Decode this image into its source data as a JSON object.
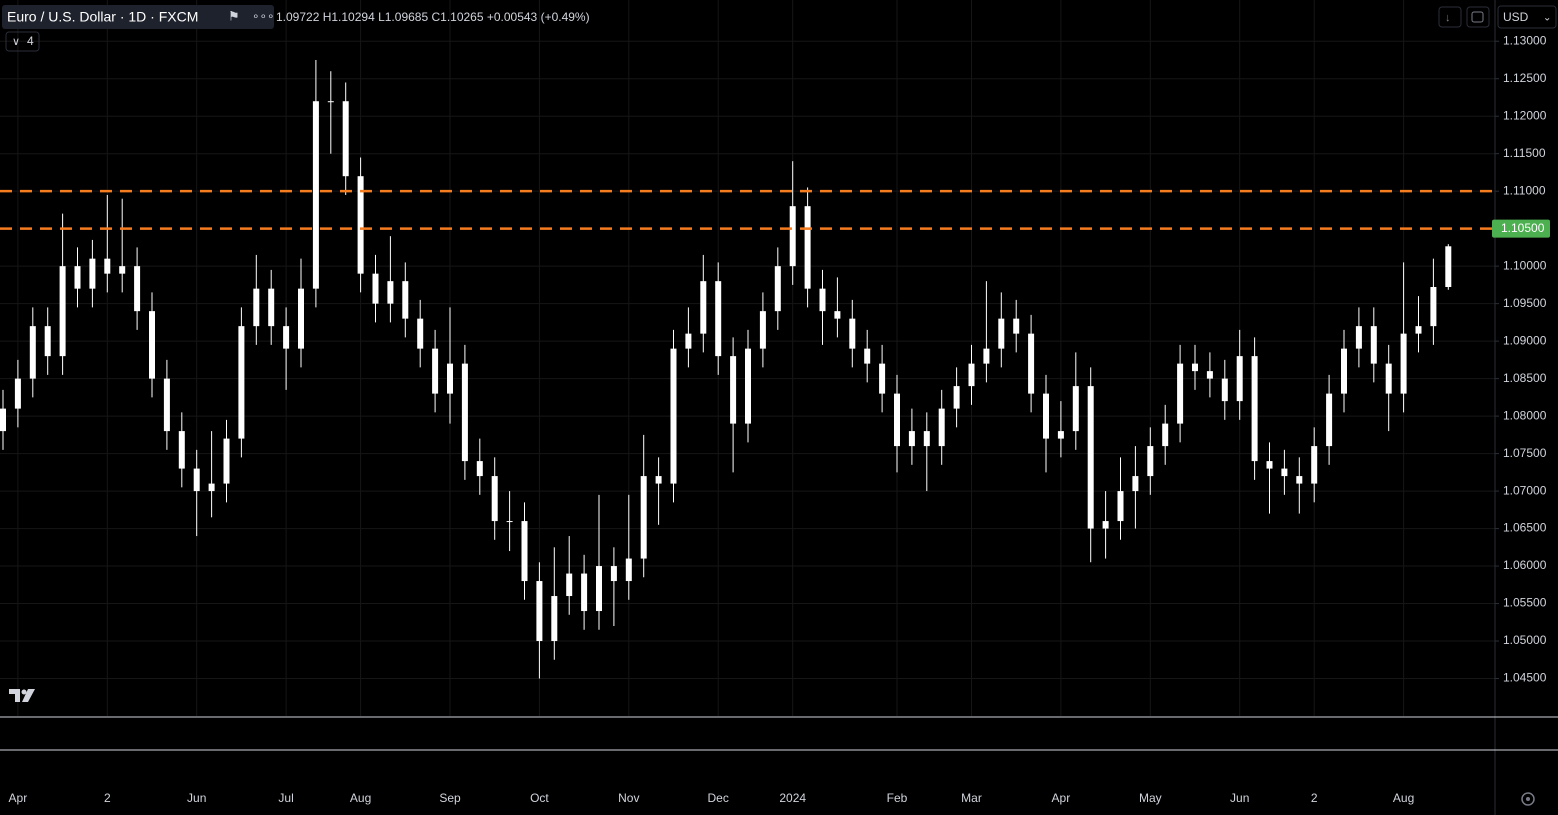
{
  "chart_data": {
    "type": "candlestick",
    "title": "Euro / U.S. Dollar · 1D · FXCM",
    "subtitle": "1.09722 H1.10294 L1.09685 C1.10265 +0.00543 (+0.49%)",
    "indicator_count": 4,
    "currency": "USD",
    "color": "#ffffff",
    "grid": true,
    "categories": [
      null,
      "Apr",
      null,
      null,
      null,
      null,
      null,
      "2",
      null,
      null,
      null,
      null,
      null,
      "Jun",
      null,
      null,
      null,
      null,
      null,
      "Jul",
      null,
      null,
      null,
      null,
      "Aug",
      null,
      null,
      null,
      null,
      null,
      "Sep",
      null,
      null,
      null,
      null,
      null,
      "Oct",
      null,
      null,
      null,
      null,
      null,
      "Nov",
      null,
      null,
      null,
      null,
      null,
      "Dec",
      null,
      null,
      null,
      null,
      "2024",
      null,
      null,
      null,
      null,
      null,
      null,
      "Feb",
      null,
      null,
      null,
      null,
      "Mar",
      null,
      null,
      null,
      null,
      null,
      "Apr",
      null,
      null,
      null,
      null,
      null,
      "May",
      null,
      null,
      null,
      null,
      null,
      "Jun",
      null,
      null,
      null,
      null,
      "2",
      null,
      null,
      null,
      null,
      null,
      "Aug",
      null,
      null,
      null
    ],
    "open": [
      1.078,
      1.081,
      1.085,
      1.092,
      1.088,
      1.1,
      1.097,
      1.101,
      1.099,
      1.1,
      1.094,
      1.085,
      1.078,
      1.073,
      1.07,
      1.071,
      1.077,
      1.092,
      1.097,
      1.092,
      1.089,
      1.097,
      1.122,
      1.122,
      1.112,
      1.099,
      1.095,
      1.098,
      1.093,
      1.089,
      1.083,
      1.087,
      1.074,
      1.072,
      1.066,
      1.066,
      1.058,
      1.05,
      1.056,
      1.059,
      1.054,
      1.06,
      1.058,
      1.061,
      1.072,
      1.071,
      1.089,
      1.091,
      1.098,
      1.088,
      1.079,
      1.089,
      1.094,
      1.1,
      1.108,
      1.097,
      1.094,
      1.093,
      1.089,
      1.087,
      1.083,
      1.076,
      1.078,
      1.076,
      1.081,
      1.084,
      1.087,
      1.089,
      1.093,
      1.091,
      1.083,
      1.077,
      1.078,
      1.084,
      1.065,
      1.066,
      1.07,
      1.072,
      1.076,
      1.079,
      1.087,
      1.086,
      1.085,
      1.082,
      1.088,
      1.074,
      1.073,
      1.072,
      1.071,
      1.076,
      1.083,
      1.089,
      1.092,
      1.087,
      1.083,
      1.091,
      1.092,
      1.09722
    ],
    "high": [
      1.0835,
      1.0875,
      1.0945,
      1.0945,
      1.107,
      1.1025,
      1.1035,
      1.1095,
      1.109,
      1.1025,
      1.0965,
      1.0875,
      1.0805,
      1.0755,
      1.078,
      1.0795,
      1.0945,
      1.1015,
      1.0995,
      1.0945,
      1.101,
      1.1275,
      1.126,
      1.1245,
      1.1145,
      1.1015,
      1.104,
      1.1005,
      1.0955,
      1.0915,
      1.0945,
      1.0895,
      1.077,
      1.0745,
      1.07,
      1.0685,
      1.0605,
      1.0625,
      1.064,
      1.0615,
      1.0695,
      1.0625,
      1.0695,
      1.0775,
      1.0745,
      1.0915,
      1.0945,
      1.1015,
      1.1005,
      1.0905,
      1.0915,
      1.0965,
      1.1025,
      1.114,
      1.1105,
      1.0995,
      1.0985,
      1.0955,
      1.0915,
      1.0895,
      1.0855,
      1.081,
      1.0805,
      1.0835,
      1.0865,
      1.0895,
      1.098,
      1.0965,
      1.0955,
      1.0935,
      1.0855,
      1.082,
      1.0885,
      1.0865,
      1.07,
      1.0745,
      1.076,
      1.0785,
      1.0815,
      1.0895,
      1.0895,
      1.0885,
      1.0875,
      1.0915,
      1.0905,
      1.0765,
      1.0755,
      1.0745,
      1.0785,
      1.0855,
      1.0915,
      1.0945,
      1.0945,
      1.0895,
      1.1005,
      1.096,
      1.101,
      1.10294
    ],
    "low": [
      1.0755,
      1.0785,
      1.0825,
      1.0855,
      1.0855,
      1.0945,
      1.0945,
      1.0965,
      1.0965,
      1.0915,
      1.0825,
      1.0755,
      1.0705,
      1.064,
      1.0665,
      1.0685,
      1.0745,
      1.0895,
      1.0895,
      1.0835,
      1.0865,
      1.0945,
      1.115,
      1.1095,
      1.0965,
      1.0925,
      1.0925,
      1.0905,
      1.0865,
      1.0805,
      1.079,
      1.0715,
      1.0695,
      1.0635,
      1.062,
      1.0555,
      1.045,
      1.0475,
      1.0535,
      1.0515,
      1.0515,
      1.052,
      1.0555,
      1.0585,
      1.0655,
      1.0685,
      1.0865,
      1.0885,
      1.0855,
      1.0725,
      1.0765,
      1.0865,
      1.0915,
      1.0975,
      1.0945,
      1.0895,
      1.0905,
      1.0865,
      1.0845,
      1.0805,
      1.0725,
      1.0735,
      1.07,
      1.0735,
      1.0785,
      1.0815,
      1.0845,
      1.0865,
      1.0885,
      1.0805,
      1.0725,
      1.0745,
      1.0755,
      1.0605,
      1.061,
      1.0635,
      1.065,
      1.0695,
      1.0735,
      1.0765,
      1.0835,
      1.0825,
      1.0795,
      1.0795,
      1.0715,
      1.067,
      1.0695,
      1.067,
      1.0685,
      1.0735,
      1.0805,
      1.0865,
      1.0845,
      1.078,
      1.0805,
      1.0885,
      1.0895,
      1.09685
    ],
    "close": [
      1.081,
      1.085,
      1.092,
      1.088,
      1.1,
      1.097,
      1.101,
      1.099,
      1.1,
      1.094,
      1.085,
      1.078,
      1.073,
      1.07,
      1.071,
      1.077,
      1.092,
      1.097,
      1.092,
      1.089,
      1.097,
      1.122,
      1.122,
      1.112,
      1.099,
      1.095,
      1.098,
      1.093,
      1.089,
      1.083,
      1.087,
      1.074,
      1.072,
      1.066,
      1.066,
      1.058,
      1.05,
      1.056,
      1.059,
      1.054,
      1.06,
      1.058,
      1.061,
      1.072,
      1.071,
      1.089,
      1.091,
      1.098,
      1.088,
      1.079,
      1.089,
      1.094,
      1.1,
      1.108,
      1.097,
      1.094,
      1.093,
      1.089,
      1.087,
      1.083,
      1.076,
      1.078,
      1.076,
      1.081,
      1.084,
      1.087,
      1.089,
      1.093,
      1.091,
      1.083,
      1.077,
      1.078,
      1.084,
      1.065,
      1.066,
      1.07,
      1.072,
      1.076,
      1.079,
      1.087,
      1.086,
      1.085,
      1.082,
      1.088,
      1.074,
      1.073,
      1.072,
      1.071,
      1.076,
      1.083,
      1.089,
      1.092,
      1.087,
      1.083,
      1.091,
      1.092,
      1.09722,
      1.10265
    ],
    "ylim": [
      1.04,
      1.1355
    ],
    "yticks": [
      {
        "value": 1.13,
        "label": "1.13000"
      },
      {
        "value": 1.125,
        "label": "1.12500"
      },
      {
        "value": 1.12,
        "label": "1.12000"
      },
      {
        "value": 1.115,
        "label": "1.11500"
      },
      {
        "value": 1.11,
        "label": "1.11000"
      },
      {
        "value": 1.1,
        "label": "1.10000"
      },
      {
        "value": 1.095,
        "label": "1.09500"
      },
      {
        "value": 1.09,
        "label": "1.09000"
      },
      {
        "value": 1.085,
        "label": "1.08500"
      },
      {
        "value": 1.08,
        "label": "1.08000"
      },
      {
        "value": 1.075,
        "label": "1.07500"
      },
      {
        "value": 1.07,
        "label": "1.07000"
      },
      {
        "value": 1.065,
        "label": "1.06500"
      },
      {
        "value": 1.06,
        "label": "1.06000"
      },
      {
        "value": 1.055,
        "label": "1.05500"
      },
      {
        "value": 1.05,
        "label": "1.05000"
      },
      {
        "value": 1.045,
        "label": "1.04500"
      }
    ],
    "hlines": [
      {
        "value": 1.11,
        "color": "#f57c1f"
      },
      {
        "value": 1.105,
        "label": "1.10500",
        "color": "#f57c1f"
      }
    ],
    "price_tag_color": "#4caf50"
  }
}
